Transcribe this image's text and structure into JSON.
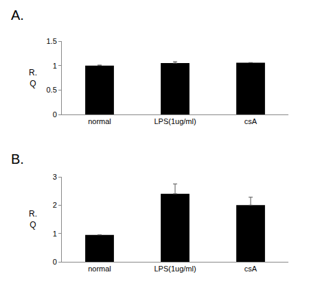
{
  "chart_data": [
    {
      "type": "bar",
      "title": "A.",
      "y_label": "R. Q",
      "categories": [
        "normal",
        "LPS(1ug/ml)",
        "csA"
      ],
      "values": [
        1.0,
        1.05,
        1.06
      ],
      "errors": [
        0.01,
        0.03,
        0.0
      ],
      "color": "#000000",
      "ylim": [
        0,
        1.5
      ],
      "yticks": [
        0,
        0.5,
        1,
        1.5
      ],
      "grid": false
    },
    {
      "type": "bar",
      "title": "B.",
      "y_label": "R. Q",
      "categories": [
        "normal",
        "LPS(1ug/ml)",
        "csA"
      ],
      "values": [
        0.95,
        2.4,
        2.0
      ],
      "errors": [
        0.0,
        0.35,
        0.28
      ],
      "color": "#000000",
      "ylim": [
        0,
        3
      ],
      "yticks": [
        0,
        1,
        2,
        3
      ],
      "grid": false
    }
  ]
}
